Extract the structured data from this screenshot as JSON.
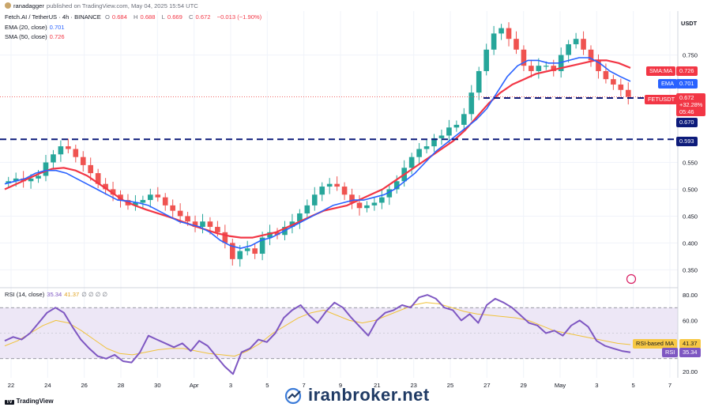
{
  "header": {
    "author": "ranadagger",
    "published": "published on TradingView.com, May 04, 2025 15:54 UTC",
    "symbol_line": "Fetch.AI / TetherUS · 4h · BINANCE",
    "ohlc": [
      {
        "k": "O",
        "v": "0.684"
      },
      {
        "k": "H",
        "v": "0.688"
      },
      {
        "k": "L",
        "v": "0.669"
      },
      {
        "k": "C",
        "v": "0.672"
      }
    ],
    "change": "−0.013 (−1.90%)",
    "ema_label": "EMA (20, close)",
    "ema_value": "0.701",
    "sma_label": "SMA (50, close)",
    "sma_value": "0.726",
    "rsi_label": "RSI (14, close)",
    "rsi_value": "35.34",
    "rsi_ma_value": "41.37",
    "rsi_extra": "∅ ∅ ∅ ∅"
  },
  "currency": "USDT",
  "tags": {
    "sma_name": "SMA:MA",
    "sma_val": "0.726",
    "ema_name": "EMA",
    "ema_val": "0.701",
    "sym_name": "FETUSDT",
    "sym_price": "0.672",
    "sym_change": "+32.28%",
    "sym_time": "05:46",
    "level_670": "0.670",
    "level_593": "0.593",
    "rsi_ma_name": "RSI-based MA",
    "rsi_ma_val": "41.37",
    "rsi_name": "RSI",
    "rsi_val": "35.34"
  },
  "footer": {
    "tradingview": "TradingView",
    "tv_badge": "TV",
    "watermark": "iranbroker.net"
  },
  "colors": {
    "up": "#26a69a",
    "down": "#ef5350",
    "ema": "#2962ff",
    "sma": "#f23645",
    "rsi": "#7e57c2",
    "rsi_ma": "#f0c23a",
    "level": "#0d1b7a"
  },
  "chart_data": [
    {
      "type": "line",
      "name": "price",
      "title": "Fetch.AI / TetherUS · 4h · BINANCE",
      "x_ticks": [
        "22",
        "24",
        "26",
        "28",
        "30",
        "Apr",
        "3",
        "5",
        "7",
        "9",
        "21",
        "23",
        "25",
        "27",
        "29",
        "May",
        "3",
        "5",
        "7"
      ],
      "y_ticks": [
        "0.350",
        "0.400",
        "0.450",
        "0.500",
        "0.550",
        "0.750"
      ],
      "ylim": [
        0.33,
        0.82
      ],
      "close_path": [
        0.515,
        0.52,
        0.515,
        0.52,
        0.525,
        0.55,
        0.565,
        0.58,
        0.575,
        0.56,
        0.545,
        0.53,
        0.51,
        0.5,
        0.49,
        0.48,
        0.47,
        0.475,
        0.48,
        0.49,
        0.485,
        0.47,
        0.46,
        0.45,
        0.44,
        0.43,
        0.44,
        0.43,
        0.42,
        0.4,
        0.37,
        0.385,
        0.39,
        0.38,
        0.41,
        0.42,
        0.415,
        0.43,
        0.44,
        0.455,
        0.47,
        0.49,
        0.505,
        0.51,
        0.505,
        0.49,
        0.475,
        0.465,
        0.47,
        0.475,
        0.485,
        0.5,
        0.515,
        0.54,
        0.56,
        0.575,
        0.58,
        0.595,
        0.6,
        0.615,
        0.62,
        0.64,
        0.68,
        0.72,
        0.76,
        0.79,
        0.8,
        0.78,
        0.76,
        0.73,
        0.72,
        0.73,
        0.73,
        0.72,
        0.75,
        0.77,
        0.78,
        0.76,
        0.74,
        0.72,
        0.705,
        0.695,
        0.685,
        0.672
      ],
      "ema_path": [
        0.51,
        0.515,
        0.52,
        0.53,
        0.535,
        0.535,
        0.53,
        0.52,
        0.51,
        0.5,
        0.49,
        0.48,
        0.478,
        0.475,
        0.47,
        0.46,
        0.45,
        0.44,
        0.435,
        0.43,
        0.42,
        0.405,
        0.395,
        0.39,
        0.395,
        0.405,
        0.41,
        0.42,
        0.43,
        0.44,
        0.45,
        0.46,
        0.47,
        0.475,
        0.48,
        0.48,
        0.485,
        0.49,
        0.5,
        0.515,
        0.53,
        0.55,
        0.57,
        0.585,
        0.6,
        0.615,
        0.63,
        0.65,
        0.68,
        0.71,
        0.73,
        0.74,
        0.74,
        0.735,
        0.735,
        0.74,
        0.745,
        0.745,
        0.735,
        0.72,
        0.71,
        0.701
      ],
      "sma_path": [
        0.5,
        0.51,
        0.52,
        0.53,
        0.538,
        0.54,
        0.535,
        0.525,
        0.51,
        0.495,
        0.48,
        0.47,
        0.462,
        0.455,
        0.448,
        0.44,
        0.432,
        0.425,
        0.418,
        0.413,
        0.41,
        0.41,
        0.415,
        0.42,
        0.43,
        0.44,
        0.45,
        0.46,
        0.465,
        0.47,
        0.48,
        0.49,
        0.5,
        0.515,
        0.53,
        0.545,
        0.56,
        0.575,
        0.59,
        0.61,
        0.635,
        0.66,
        0.68,
        0.695,
        0.705,
        0.715,
        0.72,
        0.725,
        0.73,
        0.735,
        0.74,
        0.74,
        0.735,
        0.726
      ],
      "levels": [
        0.67,
        0.593
      ],
      "last_close": 0.672
    },
    {
      "type": "line",
      "name": "rsi",
      "title": "RSI (14, close)",
      "y_ticks": [
        "20.00",
        "40.00",
        "60.00",
        "80.00"
      ],
      "ylim": [
        15,
        85
      ],
      "bands": [
        30,
        70
      ],
      "rsi_path": [
        44,
        47,
        45,
        50,
        58,
        66,
        70,
        66,
        55,
        45,
        38,
        32,
        30,
        33,
        28,
        27,
        35,
        48,
        45,
        42,
        39,
        42,
        36,
        44,
        40,
        32,
        24,
        18,
        35,
        38,
        45,
        43,
        50,
        62,
        68,
        72,
        64,
        58,
        67,
        74,
        70,
        62,
        55,
        48,
        60,
        66,
        68,
        72,
        70,
        78,
        80,
        77,
        70,
        68,
        60,
        65,
        58,
        72,
        77,
        74,
        70,
        64,
        58,
        56,
        50,
        52,
        48,
        56,
        60,
        55,
        44,
        40,
        38,
        36,
        35
      ],
      "rsi_ma_path": [
        40,
        44,
        50,
        56,
        60,
        58,
        52,
        45,
        38,
        34,
        33,
        35,
        37,
        38,
        38,
        36,
        34,
        33,
        32,
        36,
        42,
        50,
        56,
        62,
        66,
        68,
        64,
        60,
        58,
        60,
        64,
        68,
        72,
        74,
        73,
        70,
        67,
        65,
        64,
        63,
        62,
        60,
        56,
        52,
        50,
        48,
        46,
        44,
        42,
        41
      ],
      "last_rsi": 35.34,
      "last_ma": 41.37
    }
  ]
}
